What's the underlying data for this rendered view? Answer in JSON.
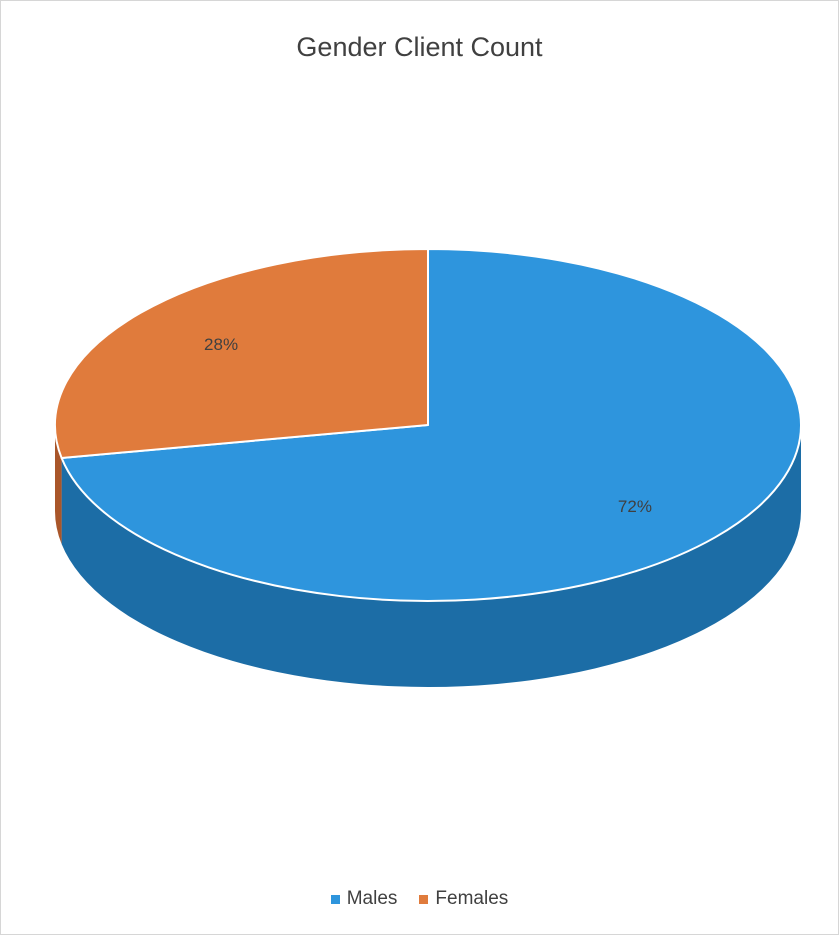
{
  "chart_data": {
    "type": "pie",
    "title": "Gender Client Count",
    "style": "3d",
    "legend_position": "bottom",
    "slices": [
      {
        "name": "Males",
        "value": 72,
        "label": "72%",
        "color": "#2E95DD",
        "side_color": "#1C6DA6"
      },
      {
        "name": "Females",
        "value": 28,
        "label": "28%",
        "color": "#E07B3C",
        "side_color": "#A9562A"
      }
    ]
  }
}
